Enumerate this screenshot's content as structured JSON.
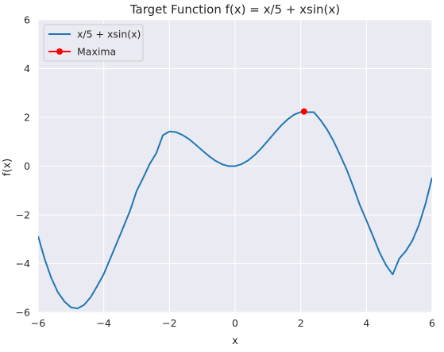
{
  "chart_data": {
    "type": "line",
    "title": "Target Function f(x) = x/5 + xsin(x)",
    "xlabel": "x",
    "ylabel": "f(x)",
    "xlim": [
      -6,
      6
    ],
    "ylim": [
      -6,
      6
    ],
    "xticks": [
      -6,
      -4,
      -2,
      0,
      2,
      4,
      6
    ],
    "yticks": [
      -6,
      -4,
      -2,
      0,
      2,
      4,
      6
    ],
    "xtick_labels": [
      "−6",
      "−4",
      "−2",
      "0",
      "2",
      "4",
      "6"
    ],
    "ytick_labels": [
      "−6",
      "−4",
      "−2",
      "0",
      "2",
      "4",
      "6"
    ],
    "grid": true,
    "legend_position": "top-left",
    "series": [
      {
        "name": "x/5 + xsin(x)",
        "kind": "line",
        "color": "#1f77b4",
        "x": [
          -6.0,
          -5.8,
          -5.6,
          -5.4,
          -5.2,
          -5.0,
          -4.8,
          -4.6,
          -4.4,
          -4.2,
          -4.0,
          -3.8,
          -3.6,
          -3.4,
          -3.2,
          -3.0,
          -2.8,
          -2.6,
          -2.4,
          -2.2,
          -2.0,
          -1.8,
          -1.6,
          -1.4,
          -1.2,
          -1.0,
          -0.8,
          -0.6,
          -0.4,
          -0.2,
          0.0,
          0.2,
          0.4,
          0.6,
          0.8,
          1.0,
          1.2,
          1.4,
          1.6,
          1.8,
          2.0,
          2.2,
          2.4,
          2.6,
          2.8,
          3.0,
          3.2,
          3.4,
          3.6,
          3.8,
          4.0,
          4.2,
          4.4,
          4.6,
          4.8,
          5.0,
          5.2,
          5.4,
          5.6,
          5.8,
          6.0
        ],
        "y": [
          -2.876,
          -3.815,
          -4.586,
          -5.171,
          -5.553,
          -5.795,
          -5.836,
          -5.694,
          -5.377,
          -4.919,
          -4.427,
          -3.786,
          -3.141,
          -2.491,
          -1.831,
          -1.023,
          -0.483,
          0.09,
          0.532,
          1.267,
          1.419,
          1.393,
          1.275,
          1.102,
          0.878,
          0.641,
          0.414,
          0.218,
          0.076,
          0.0,
          0.0,
          0.08,
          0.236,
          0.459,
          0.734,
          1.042,
          1.358,
          1.66,
          1.918,
          2.113,
          2.219,
          2.213,
          2.212,
          1.889,
          1.504,
          1.023,
          0.447,
          -0.148,
          -0.849,
          -1.6,
          -2.227,
          -2.876,
          -3.543,
          -4.072,
          -4.444,
          -3.795,
          -3.486,
          -3.055,
          -2.413,
          -1.547,
          -0.476
        ]
      },
      {
        "name": "Maxima",
        "kind": "marker-line",
        "color": "#ff0000",
        "x": [
          2.1
        ],
        "y": [
          2.24
        ]
      }
    ]
  }
}
